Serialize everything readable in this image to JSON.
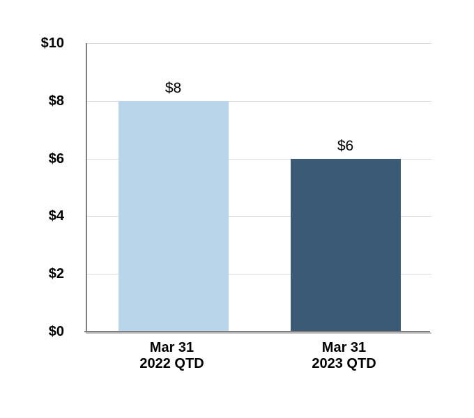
{
  "chart_data": {
    "type": "bar",
    "title": "",
    "xlabel": "",
    "ylabel": "",
    "categories": [
      "Mar 31\n2022 QTD",
      "Mar 31\n2023 QTD"
    ],
    "values": [
      8,
      6
    ],
    "data_labels": [
      "$8",
      "$6"
    ],
    "y_ticks": [
      {
        "value": 0,
        "label": "$0"
      },
      {
        "value": 2,
        "label": "$2"
      },
      {
        "value": 4,
        "label": "$4"
      },
      {
        "value": 6,
        "label": "$6"
      },
      {
        "value": 8,
        "label": "$8"
      },
      {
        "value": 10,
        "label": "$10"
      }
    ],
    "ylim": [
      0,
      10
    ],
    "grid": true,
    "legend": "none",
    "colors": {
      "bars": [
        "#b9d5ea",
        "#3b5a75"
      ],
      "gridline": "#d9d9d9",
      "axis": "#7f7f7f",
      "text": "#000000"
    }
  }
}
